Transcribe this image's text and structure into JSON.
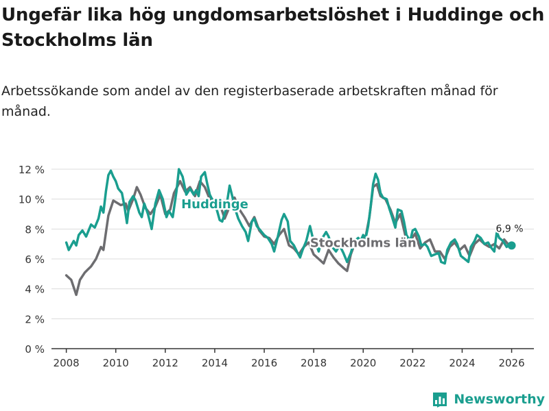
{
  "header": {
    "title": "Ungefär lika hög ungdomsarbetslöshet i Huddinge och Stockholms län",
    "subtitle": "Arbetssökande som andel av den registerbaserade arbetskraften månad för månad."
  },
  "brand": {
    "name": "Newsworthy",
    "icon": "bar-chart-icon",
    "color": "#1a9e8f"
  },
  "colors": {
    "huddinge": "#1a9e8f",
    "stockholm": "#6d6d70",
    "grid": "#dcdcdc"
  },
  "chart_data": {
    "type": "line",
    "title": "Ungefär lika hög ungdomsarbetslöshet i Huddinge och Stockholms län",
    "xlabel": "",
    "ylabel": "",
    "xlim": [
      2007.4,
      2026.9
    ],
    "ylim": [
      0,
      12
    ],
    "grid": true,
    "x_ticks": [
      2008,
      2010,
      2012,
      2014,
      2016,
      2018,
      2020,
      2022,
      2024,
      2026
    ],
    "x_tick_labels": [
      "2008",
      "2010",
      "2012",
      "2014",
      "2016",
      "2018",
      "2020",
      "2022",
      "2024",
      "2026"
    ],
    "y_ticks": [
      0,
      2,
      4,
      6,
      8,
      10,
      12
    ],
    "y_tick_labels": [
      "0 %",
      "2 %",
      "4 %",
      "6 %",
      "8 %",
      "10 %",
      "12 %"
    ],
    "series": [
      {
        "name": "Stockholms län",
        "label": "Stockholms län",
        "points": [
          [
            2008.0,
            4.9
          ],
          [
            2008.2,
            4.6
          ],
          [
            2008.4,
            3.6
          ],
          [
            2008.55,
            4.6
          ],
          [
            2008.75,
            5.1
          ],
          [
            2009.0,
            5.5
          ],
          [
            2009.2,
            6.0
          ],
          [
            2009.4,
            6.8
          ],
          [
            2009.5,
            6.6
          ],
          [
            2009.7,
            8.9
          ],
          [
            2009.9,
            9.9
          ],
          [
            2010.2,
            9.6
          ],
          [
            2010.4,
            9.7
          ],
          [
            2010.5,
            9.2
          ],
          [
            2010.7,
            10.0
          ],
          [
            2010.85,
            10.8
          ],
          [
            2011.0,
            10.3
          ],
          [
            2011.2,
            9.4
          ],
          [
            2011.4,
            9.0
          ],
          [
            2011.6,
            9.5
          ],
          [
            2011.8,
            10.3
          ],
          [
            2012.0,
            9.0
          ],
          [
            2012.2,
            9.3
          ],
          [
            2012.35,
            10.4
          ],
          [
            2012.6,
            11.2
          ],
          [
            2012.8,
            10.5
          ],
          [
            2013.0,
            10.8
          ],
          [
            2013.2,
            10.2
          ],
          [
            2013.4,
            11.2
          ],
          [
            2013.6,
            10.8
          ],
          [
            2013.8,
            10.0
          ],
          [
            2014.0,
            10.0
          ],
          [
            2014.2,
            9.7
          ],
          [
            2014.4,
            8.7
          ],
          [
            2014.6,
            9.5
          ],
          [
            2014.8,
            10.1
          ],
          [
            2015.0,
            9.3
          ],
          [
            2015.2,
            8.8
          ],
          [
            2015.4,
            8.2
          ],
          [
            2015.6,
            8.8
          ],
          [
            2015.8,
            7.9
          ],
          [
            2016.0,
            7.5
          ],
          [
            2016.2,
            7.4
          ],
          [
            2016.4,
            7.0
          ],
          [
            2016.6,
            7.6
          ],
          [
            2016.8,
            8.0
          ],
          [
            2017.0,
            6.9
          ],
          [
            2017.2,
            6.7
          ],
          [
            2017.4,
            6.3
          ],
          [
            2017.6,
            6.8
          ],
          [
            2017.8,
            7.1
          ],
          [
            2018.0,
            6.3
          ],
          [
            2018.2,
            6.0
          ],
          [
            2018.4,
            5.7
          ],
          [
            2018.6,
            6.6
          ],
          [
            2018.8,
            6.1
          ],
          [
            2019.0,
            5.7
          ],
          [
            2019.2,
            5.4
          ],
          [
            2019.35,
            5.2
          ],
          [
            2019.5,
            6.3
          ],
          [
            2019.7,
            7.2
          ],
          [
            2019.9,
            7.3
          ],
          [
            2020.1,
            7.5
          ],
          [
            2020.25,
            8.8
          ],
          [
            2020.4,
            10.8
          ],
          [
            2020.55,
            11.0
          ],
          [
            2020.7,
            10.2
          ],
          [
            2020.9,
            10.0
          ],
          [
            2021.1,
            9.3
          ],
          [
            2021.3,
            8.4
          ],
          [
            2021.5,
            9.0
          ],
          [
            2021.7,
            7.6
          ],
          [
            2021.9,
            7.2
          ],
          [
            2022.1,
            7.7
          ],
          [
            2022.3,
            6.7
          ],
          [
            2022.5,
            7.1
          ],
          [
            2022.7,
            7.3
          ],
          [
            2022.9,
            6.5
          ],
          [
            2023.1,
            6.5
          ],
          [
            2023.3,
            6.0
          ],
          [
            2023.5,
            6.8
          ],
          [
            2023.7,
            7.1
          ],
          [
            2023.9,
            6.6
          ],
          [
            2024.1,
            6.9
          ],
          [
            2024.3,
            6.2
          ],
          [
            2024.5,
            7.0
          ],
          [
            2024.7,
            7.3
          ],
          [
            2024.9,
            7.0
          ],
          [
            2025.1,
            6.8
          ],
          [
            2025.3,
            7.0
          ],
          [
            2025.5,
            6.7
          ],
          [
            2025.7,
            7.3
          ],
          [
            2025.9,
            6.9
          ],
          [
            2026.0,
            6.9
          ]
        ]
      },
      {
        "name": "Huddinge",
        "label": "Huddinge",
        "points": [
          [
            2008.0,
            7.1
          ],
          [
            2008.1,
            6.6
          ],
          [
            2008.3,
            7.2
          ],
          [
            2008.4,
            6.9
          ],
          [
            2008.5,
            7.6
          ],
          [
            2008.65,
            7.9
          ],
          [
            2008.8,
            7.5
          ],
          [
            2009.0,
            8.3
          ],
          [
            2009.15,
            8.1
          ],
          [
            2009.3,
            8.7
          ],
          [
            2009.4,
            9.5
          ],
          [
            2009.5,
            9.1
          ],
          [
            2009.6,
            10.5
          ],
          [
            2009.7,
            11.6
          ],
          [
            2009.8,
            11.9
          ],
          [
            2009.9,
            11.5
          ],
          [
            2010.0,
            11.2
          ],
          [
            2010.1,
            10.7
          ],
          [
            2010.25,
            10.4
          ],
          [
            2010.35,
            9.5
          ],
          [
            2010.45,
            8.4
          ],
          [
            2010.55,
            9.8
          ],
          [
            2010.7,
            10.2
          ],
          [
            2010.8,
            9.9
          ],
          [
            2010.95,
            9.1
          ],
          [
            2011.05,
            8.8
          ],
          [
            2011.15,
            9.7
          ],
          [
            2011.3,
            9.0
          ],
          [
            2011.45,
            8.0
          ],
          [
            2011.6,
            9.7
          ],
          [
            2011.75,
            10.6
          ],
          [
            2011.9,
            10.0
          ],
          [
            2012.05,
            8.8
          ],
          [
            2012.15,
            9.2
          ],
          [
            2012.3,
            8.8
          ],
          [
            2012.45,
            10.5
          ],
          [
            2012.55,
            12.0
          ],
          [
            2012.7,
            11.5
          ],
          [
            2012.85,
            10.3
          ],
          [
            2013.0,
            10.7
          ],
          [
            2013.15,
            10.3
          ],
          [
            2013.25,
            10.6
          ],
          [
            2013.35,
            10.2
          ],
          [
            2013.45,
            11.5
          ],
          [
            2013.6,
            11.8
          ],
          [
            2013.7,
            11.0
          ],
          [
            2013.8,
            10.3
          ],
          [
            2013.95,
            9.8
          ],
          [
            2014.1,
            9.2
          ],
          [
            2014.2,
            8.6
          ],
          [
            2014.3,
            8.5
          ],
          [
            2014.45,
            9.3
          ],
          [
            2014.6,
            10.9
          ],
          [
            2014.75,
            9.9
          ],
          [
            2014.85,
            9.2
          ],
          [
            2014.95,
            8.7
          ],
          [
            2015.1,
            8.2
          ],
          [
            2015.25,
            7.8
          ],
          [
            2015.35,
            7.2
          ],
          [
            2015.5,
            8.5
          ],
          [
            2015.6,
            8.7
          ],
          [
            2015.7,
            8.2
          ],
          [
            2015.85,
            7.9
          ],
          [
            2016.0,
            7.6
          ],
          [
            2016.15,
            7.4
          ],
          [
            2016.3,
            7.0
          ],
          [
            2016.4,
            6.5
          ],
          [
            2016.55,
            7.5
          ],
          [
            2016.7,
            8.6
          ],
          [
            2016.8,
            9.0
          ],
          [
            2016.95,
            8.5
          ],
          [
            2017.05,
            7.2
          ],
          [
            2017.2,
            6.9
          ],
          [
            2017.35,
            6.4
          ],
          [
            2017.45,
            6.1
          ],
          [
            2017.55,
            6.6
          ],
          [
            2017.7,
            7.2
          ],
          [
            2017.85,
            8.2
          ],
          [
            2017.95,
            7.5
          ],
          [
            2018.1,
            7.0
          ],
          [
            2018.2,
            6.5
          ],
          [
            2018.35,
            7.4
          ],
          [
            2018.5,
            7.8
          ],
          [
            2018.6,
            7.5
          ],
          [
            2018.75,
            6.8
          ],
          [
            2018.9,
            6.5
          ],
          [
            2019.05,
            6.9
          ],
          [
            2019.2,
            6.4
          ],
          [
            2019.35,
            5.8
          ],
          [
            2019.5,
            6.4
          ],
          [
            2019.65,
            7.2
          ],
          [
            2019.8,
            7.4
          ],
          [
            2019.9,
            7.2
          ],
          [
            2020.0,
            7.6
          ],
          [
            2020.1,
            7.4
          ],
          [
            2020.2,
            8.2
          ],
          [
            2020.3,
            9.5
          ],
          [
            2020.4,
            11.0
          ],
          [
            2020.5,
            11.7
          ],
          [
            2020.6,
            11.3
          ],
          [
            2020.7,
            10.4
          ],
          [
            2020.8,
            10.1
          ],
          [
            2020.95,
            10.0
          ],
          [
            2021.05,
            9.4
          ],
          [
            2021.15,
            8.9
          ],
          [
            2021.3,
            8.1
          ],
          [
            2021.4,
            9.3
          ],
          [
            2021.55,
            9.2
          ],
          [
            2021.65,
            8.5
          ],
          [
            2021.75,
            7.6
          ],
          [
            2021.9,
            7.2
          ],
          [
            2022.0,
            7.9
          ],
          [
            2022.1,
            8.0
          ],
          [
            2022.25,
            7.5
          ],
          [
            2022.35,
            6.9
          ],
          [
            2022.5,
            7.0
          ],
          [
            2022.6,
            6.8
          ],
          [
            2022.75,
            6.2
          ],
          [
            2022.9,
            6.3
          ],
          [
            2023.05,
            6.4
          ],
          [
            2023.15,
            5.8
          ],
          [
            2023.3,
            5.7
          ],
          [
            2023.4,
            6.6
          ],
          [
            2023.55,
            7.1
          ],
          [
            2023.7,
            7.3
          ],
          [
            2023.8,
            7.0
          ],
          [
            2023.95,
            6.2
          ],
          [
            2024.1,
            6.0
          ],
          [
            2024.25,
            5.8
          ],
          [
            2024.35,
            6.8
          ],
          [
            2024.5,
            7.2
          ],
          [
            2024.6,
            7.6
          ],
          [
            2024.75,
            7.4
          ],
          [
            2024.9,
            7.0
          ],
          [
            2025.05,
            7.1
          ],
          [
            2025.15,
            6.8
          ],
          [
            2025.3,
            6.5
          ],
          [
            2025.4,
            7.8
          ],
          [
            2025.5,
            7.4
          ],
          [
            2025.65,
            7.2
          ],
          [
            2025.8,
            6.8
          ],
          [
            2025.9,
            7.0
          ],
          [
            2026.0,
            6.9
          ]
        ]
      }
    ],
    "annotations": [
      {
        "series": "Huddinge",
        "x": 2026.0,
        "y": 6.9,
        "text": "6,9 %"
      }
    ]
  }
}
